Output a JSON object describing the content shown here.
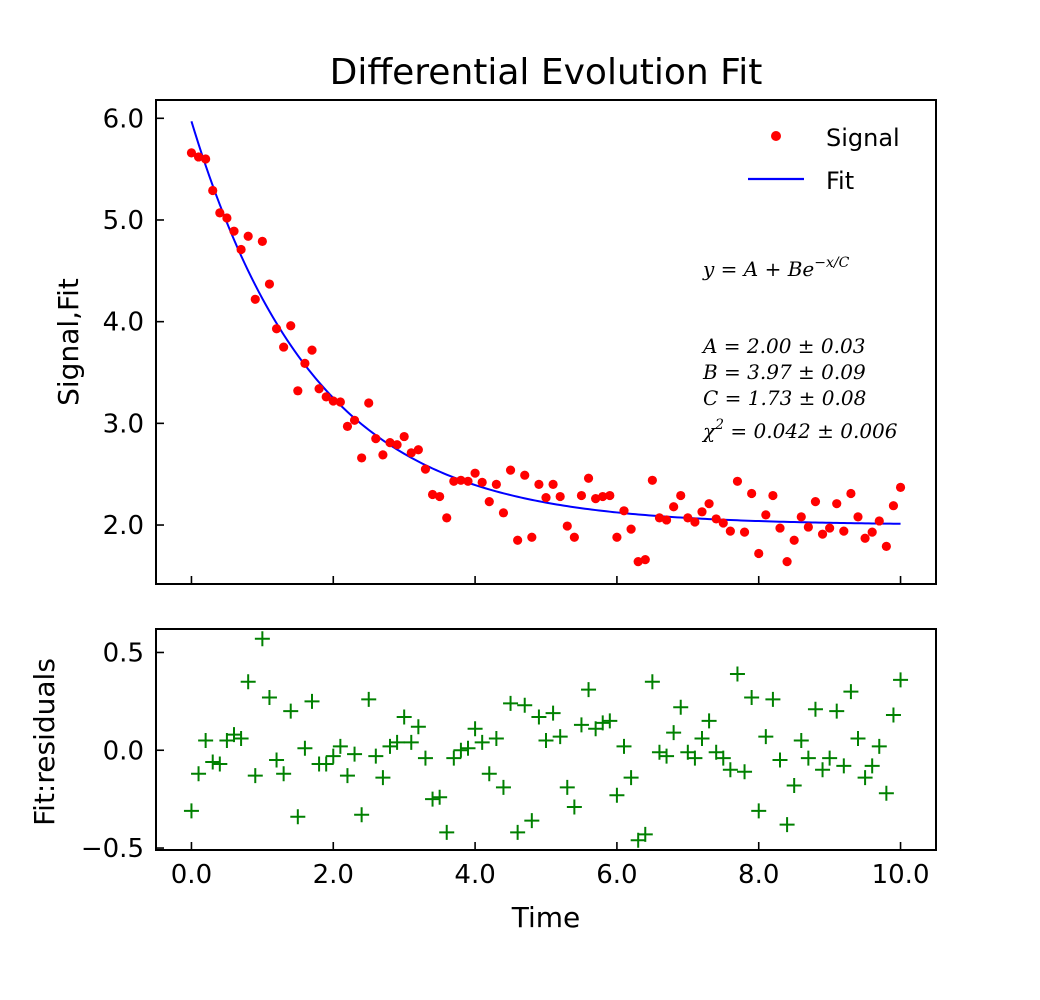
{
  "chart_data": [
    {
      "type": "scatter",
      "title": "Differential Evolution  Fit",
      "xlabel": "",
      "ylabel": "Signal,Fit",
      "xlim": [
        -0.5,
        10.5
      ],
      "ylim": [
        1.42,
        6.18
      ],
      "yticks": [
        2.0,
        3.0,
        4.0,
        5.0,
        6.0
      ],
      "ytick_labels": [
        "2.0",
        "3.0",
        "4.0",
        "5.0",
        "6.0"
      ],
      "xticks": [
        0,
        2,
        4,
        6,
        8,
        10
      ],
      "grid": false,
      "legend_position": "top-right",
      "legend": [
        "Signal",
        "Fit"
      ],
      "model": {
        "A": 2.0,
        "B": 3.97,
        "C": 1.73
      },
      "annotations": {
        "equation": "y = A + Be",
        "equation_sup": "−x/C",
        "line_a": "A = 2.00 ± 0.03",
        "line_b": "B = 3.97 ± 0.09",
        "line_c": "C = 1.73 ± 0.08",
        "line_chi_prefix": "χ",
        "line_chi_sup": "2",
        "line_chi_rest": " = 0.042 ± 0.006"
      },
      "series": [
        {
          "name": "Signal",
          "color": "#ff0000",
          "x": [
            0.0,
            0.1,
            0.2,
            0.3,
            0.4,
            0.5,
            0.6,
            0.7,
            0.8,
            0.9,
            1.0,
            1.1,
            1.2,
            1.3,
            1.4,
            1.5,
            1.6,
            1.7,
            1.8,
            1.9,
            2.0,
            2.1,
            2.2,
            2.3,
            2.4,
            2.5,
            2.6,
            2.7,
            2.8,
            2.9,
            3.0,
            3.1,
            3.2,
            3.3,
            3.4,
            3.5,
            3.6,
            3.7,
            3.8,
            3.9,
            4.0,
            4.1,
            4.2,
            4.3,
            4.4,
            4.5,
            4.6,
            4.7,
            4.8,
            4.9,
            5.0,
            5.1,
            5.2,
            5.3,
            5.4,
            5.5,
            5.6,
            5.7,
            5.8,
            5.9,
            6.0,
            6.1,
            6.2,
            6.3,
            6.4,
            6.5,
            6.6,
            6.7,
            6.8,
            6.9,
            7.0,
            7.1,
            7.2,
            7.3,
            7.4,
            7.5,
            7.6,
            7.7,
            7.8,
            7.9,
            8.0,
            8.1,
            8.2,
            8.3,
            8.4,
            8.5,
            8.6,
            8.7,
            8.8,
            8.9,
            9.0,
            9.1,
            9.2,
            9.3,
            9.4,
            9.5,
            9.6,
            9.7,
            9.8,
            9.9,
            10.0
          ],
          "y": [
            5.66,
            5.62,
            5.6,
            5.29,
            5.07,
            5.02,
            4.89,
            4.71,
            4.84,
            4.22,
            4.79,
            4.37,
            3.93,
            3.75,
            3.96,
            3.32,
            3.59,
            3.72,
            3.34,
            3.26,
            3.22,
            3.21,
            2.97,
            3.03,
            2.66,
            3.2,
            2.85,
            2.69,
            2.81,
            2.79,
            2.87,
            2.71,
            2.74,
            2.55,
            2.3,
            2.28,
            2.07,
            2.43,
            2.44,
            2.43,
            2.51,
            2.42,
            2.23,
            2.4,
            2.12,
            2.54,
            1.85,
            2.49,
            1.88,
            2.4,
            2.27,
            2.4,
            2.28,
            1.99,
            1.88,
            2.29,
            2.46,
            2.26,
            2.28,
            2.29,
            1.88,
            2.14,
            1.96,
            1.64,
            1.66,
            2.44,
            2.07,
            2.05,
            2.18,
            2.29,
            2.07,
            2.03,
            2.13,
            2.21,
            2.06,
            2.02,
            1.94,
            2.43,
            1.93,
            2.31,
            1.72,
            2.1,
            2.29,
            1.97,
            1.64,
            1.85,
            2.08,
            1.98,
            2.23,
            1.91,
            1.97,
            2.21,
            1.94,
            2.31,
            2.08,
            1.87,
            1.93,
            2.04,
            1.79,
            2.19,
            2.37
          ]
        },
        {
          "name": "Fit",
          "color": "#0000ff"
        }
      ]
    },
    {
      "type": "scatter",
      "title": "",
      "xlabel": "Time",
      "ylabel": "Fit:residuals",
      "xlim": [
        -0.5,
        10.5
      ],
      "ylim": [
        -0.51,
        0.62
      ],
      "yticks": [
        -0.5,
        0.0,
        0.5
      ],
      "ytick_labels": [
        "−0.5",
        "0.0",
        "0.5"
      ],
      "xticks": [
        0,
        2,
        4,
        6,
        8,
        10
      ],
      "xtick_labels": [
        "0.0",
        "2.0",
        "4.0",
        "6.0",
        "8.0",
        "10.0"
      ],
      "grid": false,
      "series": [
        {
          "name": "",
          "color": "#008000",
          "marker": "plus",
          "x": [
            0.0,
            0.1,
            0.2,
            0.3,
            0.4,
            0.5,
            0.6,
            0.7,
            0.8,
            0.9,
            1.0,
            1.1,
            1.2,
            1.3,
            1.4,
            1.5,
            1.6,
            1.7,
            1.8,
            1.9,
            2.0,
            2.1,
            2.2,
            2.3,
            2.4,
            2.5,
            2.6,
            2.7,
            2.8,
            2.9,
            3.0,
            3.1,
            3.2,
            3.3,
            3.4,
            3.5,
            3.6,
            3.7,
            3.8,
            3.9,
            4.0,
            4.1,
            4.2,
            4.3,
            4.4,
            4.5,
            4.6,
            4.7,
            4.8,
            4.9,
            5.0,
            5.1,
            5.2,
            5.3,
            5.4,
            5.5,
            5.6,
            5.7,
            5.8,
            5.9,
            6.0,
            6.1,
            6.2,
            6.3,
            6.4,
            6.5,
            6.6,
            6.7,
            6.8,
            6.9,
            7.0,
            7.1,
            7.2,
            7.3,
            7.4,
            7.5,
            7.6,
            7.7,
            7.8,
            7.9,
            8.0,
            8.1,
            8.2,
            8.3,
            8.4,
            8.5,
            8.6,
            8.7,
            8.8,
            8.9,
            9.0,
            9.1,
            9.2,
            9.3,
            9.4,
            9.5,
            9.6,
            9.7,
            9.8,
            9.9,
            10.0
          ],
          "y": [
            -0.31,
            -0.12,
            0.05,
            -0.06,
            -0.07,
            0.05,
            0.08,
            0.06,
            0.35,
            -0.13,
            0.57,
            0.27,
            -0.05,
            -0.12,
            0.2,
            -0.34,
            0.01,
            0.25,
            -0.07,
            -0.07,
            -0.03,
            0.02,
            -0.13,
            -0.02,
            -0.33,
            0.26,
            -0.03,
            -0.14,
            0.02,
            0.04,
            0.17,
            0.04,
            0.12,
            -0.04,
            -0.25,
            -0.24,
            -0.42,
            -0.04,
            0.0,
            0.01,
            0.11,
            0.04,
            -0.12,
            0.06,
            -0.19,
            0.24,
            -0.42,
            0.23,
            -0.36,
            0.17,
            0.05,
            0.19,
            0.07,
            -0.19,
            -0.29,
            0.13,
            0.31,
            0.11,
            0.14,
            0.15,
            -0.23,
            0.02,
            -0.14,
            -0.46,
            -0.43,
            0.35,
            -0.01,
            -0.03,
            0.09,
            0.22,
            -0.01,
            -0.04,
            0.06,
            0.15,
            -0.01,
            -0.04,
            -0.1,
            0.39,
            -0.11,
            0.27,
            -0.31,
            0.07,
            0.26,
            -0.05,
            -0.38,
            -0.18,
            0.05,
            -0.04,
            0.21,
            -0.1,
            -0.04,
            0.2,
            -0.08,
            0.3,
            0.06,
            -0.14,
            -0.08,
            0.02,
            -0.22,
            0.18,
            0.36
          ]
        }
      ]
    }
  ]
}
